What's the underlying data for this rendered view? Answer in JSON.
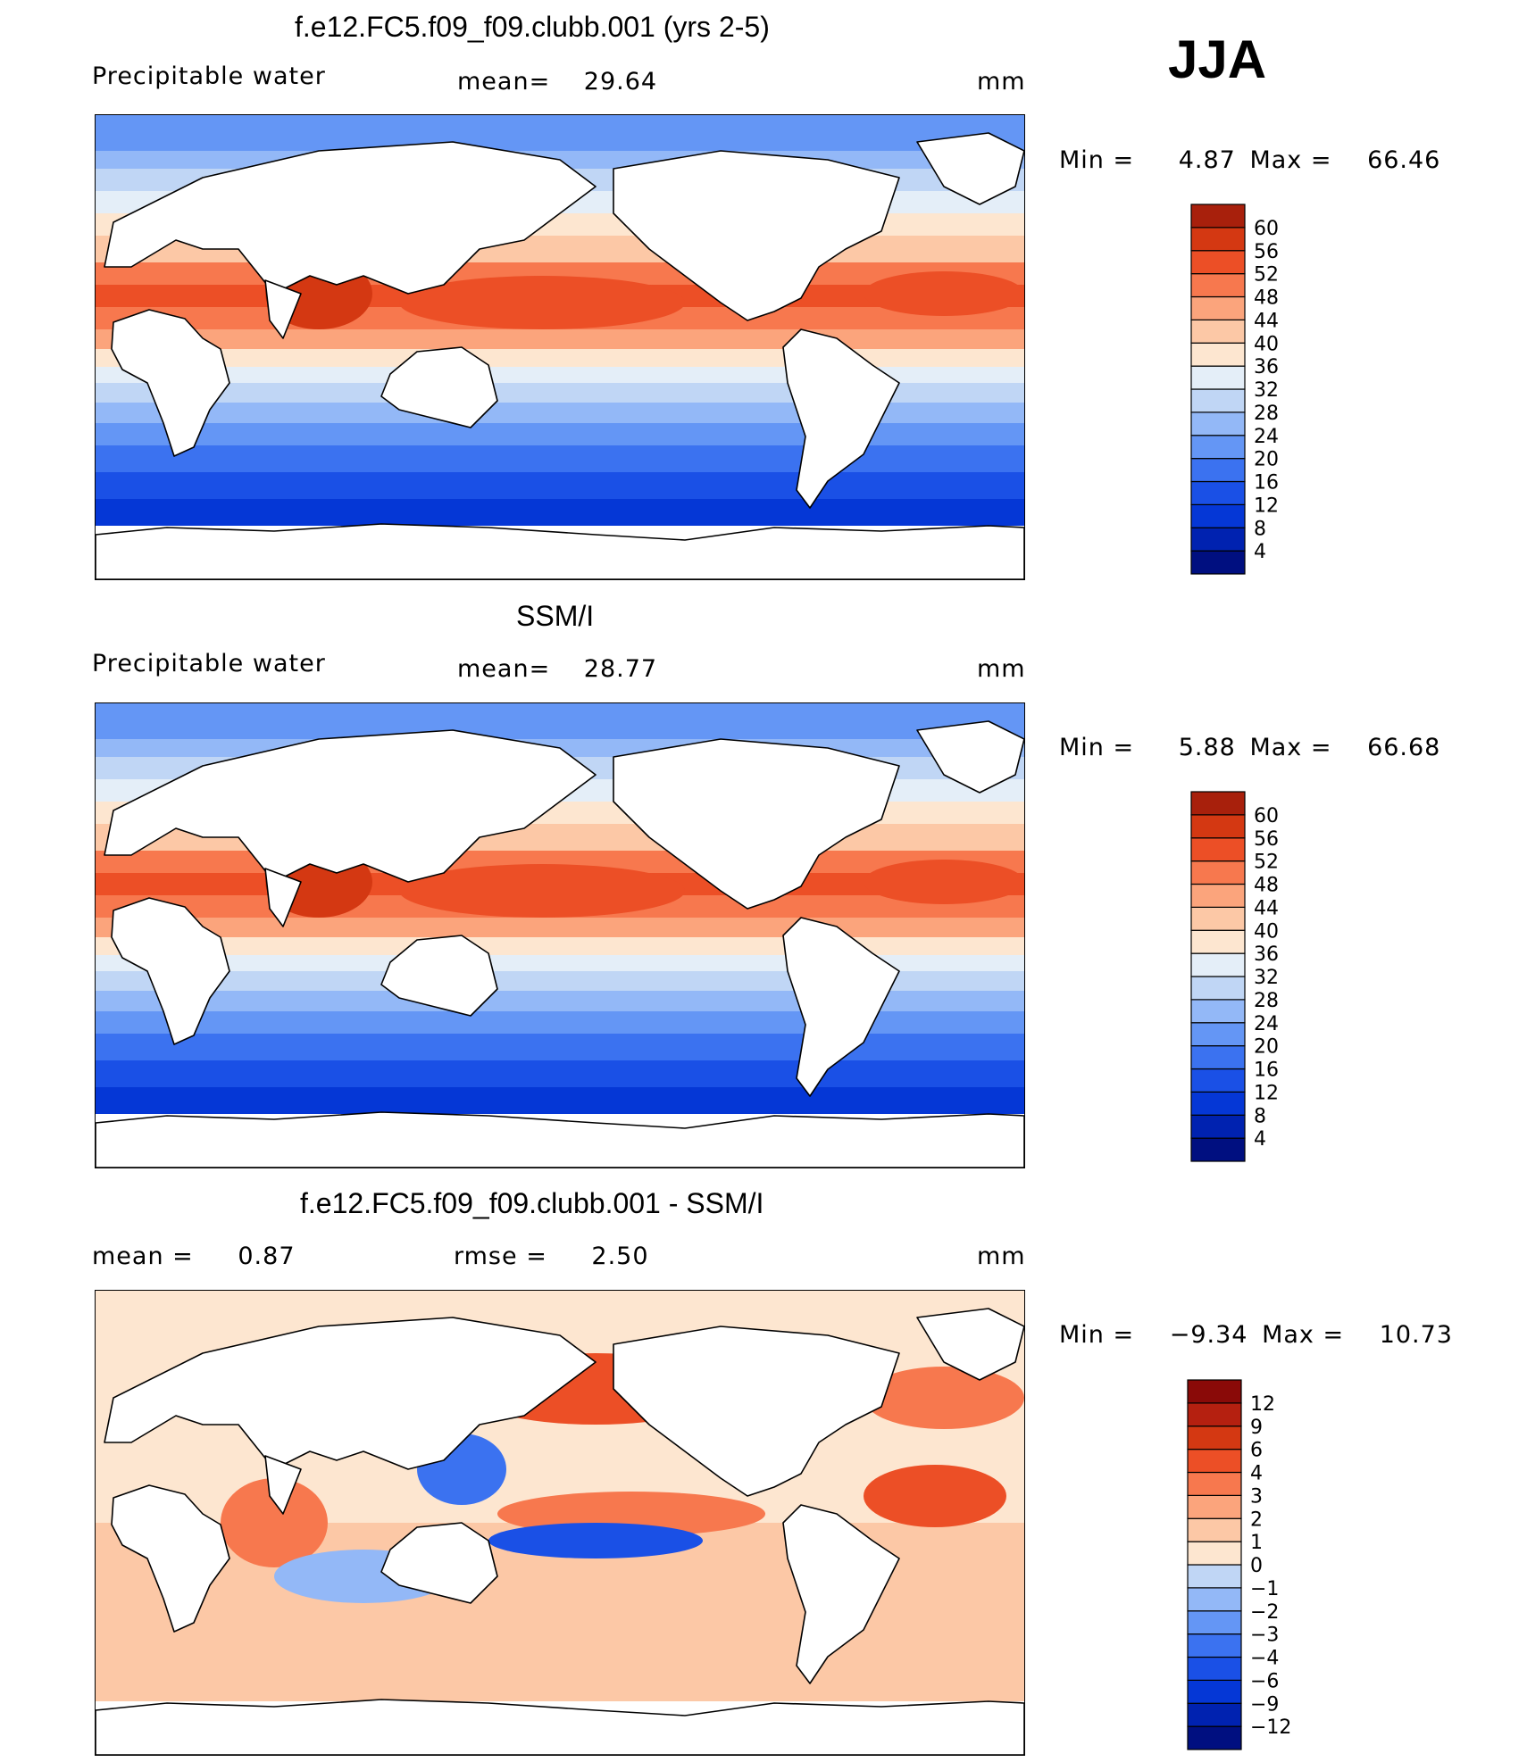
{
  "season": "JJA",
  "units": "mm",
  "panels": [
    {
      "title": "f.e12.FC5.f09_f09.clubb.001 (yrs 2-5)",
      "left_label": "Precipitable water",
      "stat1_label": "mean=",
      "stat1_value": "29.64",
      "stat2_label": "",
      "stat2_value": "",
      "units": "mm",
      "min_label": "Min =",
      "min_value": "4.87",
      "max_label": "Max =",
      "max_value": "66.46"
    },
    {
      "title": "SSM/I",
      "left_label": "Precipitable water",
      "stat1_label": "mean=",
      "stat1_value": "28.77",
      "stat2_label": "",
      "stat2_value": "",
      "units": "mm",
      "min_label": "Min =",
      "min_value": "5.88",
      "max_label": "Max =",
      "max_value": "66.68"
    },
    {
      "title": "f.e12.FC5.f09_f09.clubb.001 - SSM/I",
      "left_label": "mean =",
      "left_value": "0.87",
      "stat1_label": "rmse =",
      "stat1_value": "2.50",
      "units": "mm",
      "min_label": "Min =",
      "min_value": "−9.34",
      "max_label": "Max =",
      "max_value": "10.73"
    }
  ],
  "chart_data": [
    {
      "type": "heatmap",
      "title": "f.e12.FC5.f09_f09.clubb.001 (yrs 2-5)",
      "variable": "Precipitable water",
      "units": "mm",
      "mean": 29.64,
      "min": 4.87,
      "max": 66.46,
      "colorbar": {
        "levels": [
          4,
          8,
          12,
          16,
          20,
          24,
          28,
          32,
          36,
          40,
          44,
          48,
          52,
          56,
          60
        ],
        "tick_labels": [
          "60",
          "56",
          "52",
          "48",
          "44",
          "40",
          "36",
          "32",
          "28",
          "24",
          "20",
          "16",
          "12",
          "8",
          "4"
        ],
        "colors": [
          "#000f80",
          "#0022b0",
          "#0537d6",
          "#1a50e6",
          "#3b72f0",
          "#6496f5",
          "#93b8f7",
          "#c0d6f5",
          "#e4eef8",
          "#fde6d0",
          "#fcc8a6",
          "#fba47c",
          "#f7784e",
          "#ec4f26",
          "#d43812",
          "#a8200c"
        ]
      }
    },
    {
      "type": "heatmap",
      "title": "SSM/I",
      "variable": "Precipitable water",
      "units": "mm",
      "mean": 28.77,
      "min": 5.88,
      "max": 66.68,
      "colorbar": {
        "levels": [
          4,
          8,
          12,
          16,
          20,
          24,
          28,
          32,
          36,
          40,
          44,
          48,
          52,
          56,
          60
        ],
        "tick_labels": [
          "60",
          "56",
          "52",
          "48",
          "44",
          "40",
          "36",
          "32",
          "28",
          "24",
          "20",
          "16",
          "12",
          "8",
          "4"
        ],
        "colors": [
          "#000f80",
          "#0022b0",
          "#0537d6",
          "#1a50e6",
          "#3b72f0",
          "#6496f5",
          "#93b8f7",
          "#c0d6f5",
          "#e4eef8",
          "#fde6d0",
          "#fcc8a6",
          "#fba47c",
          "#f7784e",
          "#ec4f26",
          "#d43812",
          "#a8200c"
        ]
      }
    },
    {
      "type": "heatmap",
      "title": "f.e12.FC5.f09_f09.clubb.001 - SSM/I",
      "units": "mm",
      "mean": 0.87,
      "rmse": 2.5,
      "min": -9.34,
      "max": 10.73,
      "colorbar": {
        "levels": [
          -12,
          -9,
          -6,
          -4,
          -3,
          -2,
          -1,
          0,
          1,
          2,
          3,
          4,
          6,
          9,
          12
        ],
        "tick_labels": [
          "12",
          "9",
          "6",
          "4",
          "3",
          "2",
          "1",
          "0",
          "−1",
          "−2",
          "−3",
          "−4",
          "−6",
          "−9",
          "−12"
        ],
        "colors": [
          "#000f80",
          "#0022b0",
          "#0537d6",
          "#1a50e6",
          "#3b72f0",
          "#6496f5",
          "#93b8f7",
          "#c0d6f5",
          "#fde6d0",
          "#fcc8a6",
          "#fba47c",
          "#f7784e",
          "#ec4f26",
          "#d43812",
          "#b52010",
          "#8a0a08"
        ]
      }
    }
  ]
}
